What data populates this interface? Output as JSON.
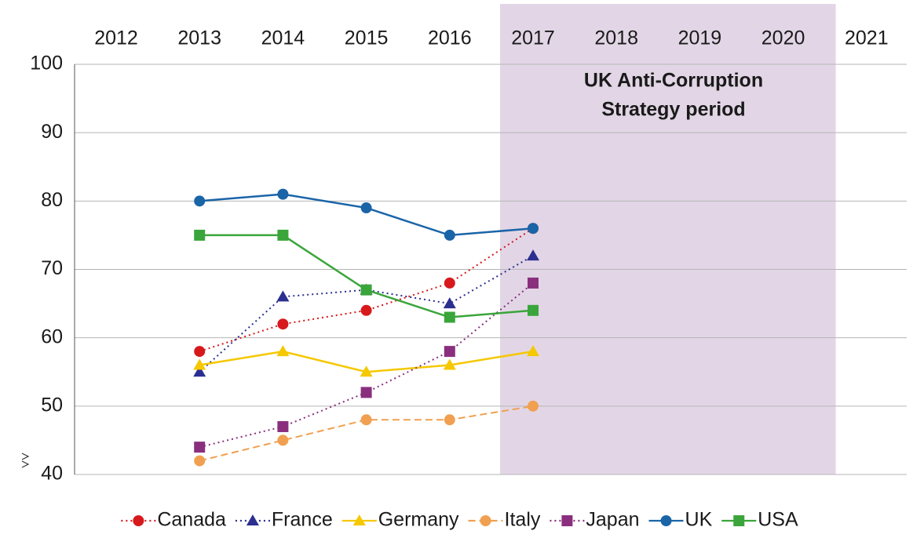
{
  "chart_data": {
    "type": "line",
    "categories": [
      "2012",
      "2013",
      "2014",
      "2015",
      "2016",
      "2017",
      "2018",
      "2019",
      "2020",
      "2021"
    ],
    "annotation": {
      "lines": [
        "UK Anti-Corruption",
        "Strategy period"
      ],
      "color": "#e2d6e6"
    },
    "series": [
      {
        "name": "Canada",
        "color": "#d7191c",
        "marker": "circle",
        "line_style": "dotted",
        "values": [
          null,
          58,
          62,
          64,
          68,
          76,
          null,
          null,
          null,
          null
        ]
      },
      {
        "name": "France",
        "color": "#2b2f8f",
        "marker": "triangle",
        "line_style": "dotted",
        "values": [
          null,
          55,
          66,
          67,
          65,
          72,
          null,
          null,
          null,
          null
        ]
      },
      {
        "name": "Germany",
        "color": "#f5c800",
        "marker": "triangle",
        "line_style": "solid",
        "values": [
          null,
          56,
          58,
          55,
          56,
          58,
          null,
          null,
          null,
          null
        ]
      },
      {
        "name": "Italy",
        "color": "#f0a050",
        "marker": "circle",
        "line_style": "dashed",
        "values": [
          null,
          42,
          45,
          48,
          48,
          50,
          null,
          null,
          null,
          null
        ]
      },
      {
        "name": "Japan",
        "color": "#8a2f7e",
        "marker": "square",
        "line_style": "dotted",
        "values": [
          null,
          44,
          47,
          52,
          58,
          68,
          null,
          null,
          null,
          null
        ]
      },
      {
        "name": "UK",
        "color": "#1a64a8",
        "marker": "circle",
        "line_style": "solid",
        "values": [
          null,
          80,
          81,
          79,
          75,
          76,
          null,
          null,
          null,
          null
        ]
      },
      {
        "name": "USA",
        "color": "#3aa53a",
        "marker": "square",
        "line_style": "solid",
        "values": [
          null,
          75,
          75,
          67,
          63,
          64,
          null,
          null,
          null,
          null
        ]
      }
    ],
    "ylim": [
      40,
      100
    ],
    "yticks": [
      40,
      50,
      60,
      70,
      80,
      90,
      100
    ],
    "grid": true,
    "legend": "bottom"
  }
}
